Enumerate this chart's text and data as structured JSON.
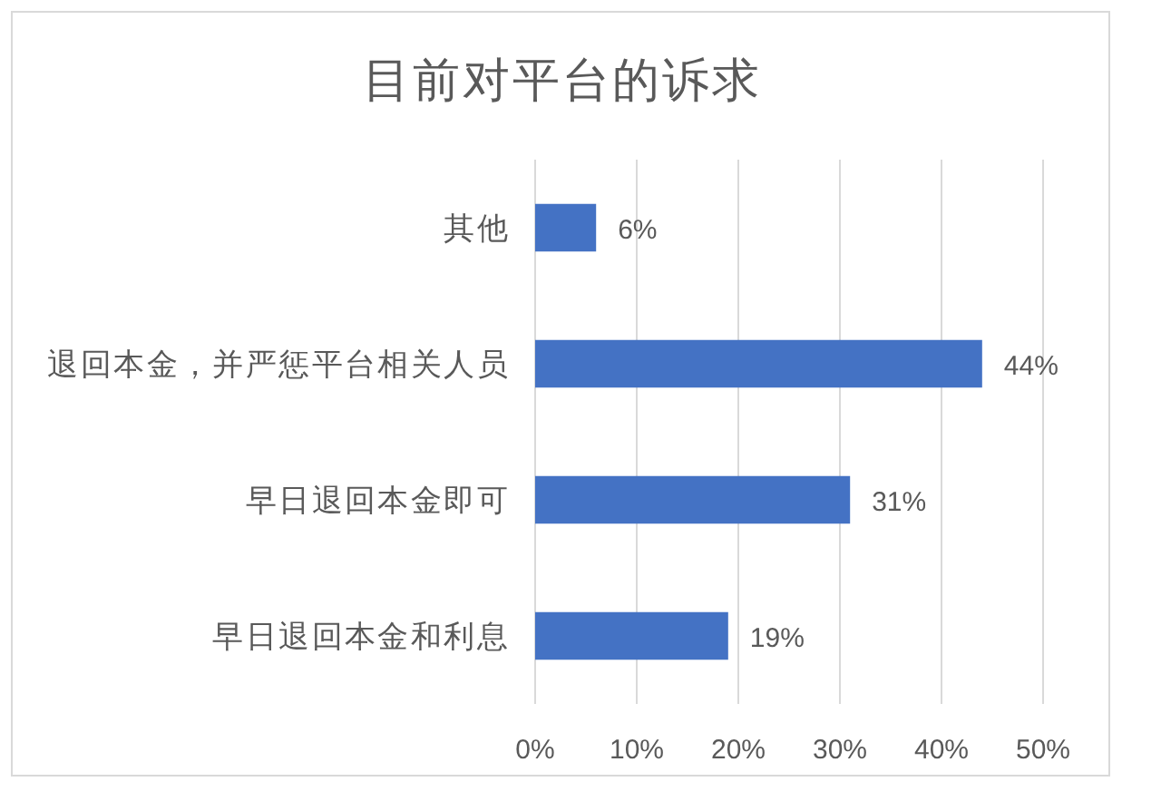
{
  "chart_data": {
    "type": "bar",
    "orientation": "horizontal",
    "title": "目前对平台的诉求",
    "categories": [
      "其他",
      "退回本金，并严惩平台相关人员",
      "早日退回本金即可",
      "早日退回本金和利息"
    ],
    "values": [
      6,
      44,
      31,
      19
    ],
    "color": "#4472c4",
    "value_labels": [
      "6%",
      "44%",
      "31%",
      "19%"
    ],
    "xlim": [
      0,
      50
    ],
    "xticks": [
      {
        "value": 0,
        "label": "0%"
      },
      {
        "value": 10,
        "label": "10%"
      },
      {
        "value": 20,
        "label": "20%"
      },
      {
        "value": 30,
        "label": "30%"
      },
      {
        "value": 40,
        "label": "40%"
      },
      {
        "value": 50,
        "label": "50%"
      }
    ],
    "grid": "x"
  }
}
